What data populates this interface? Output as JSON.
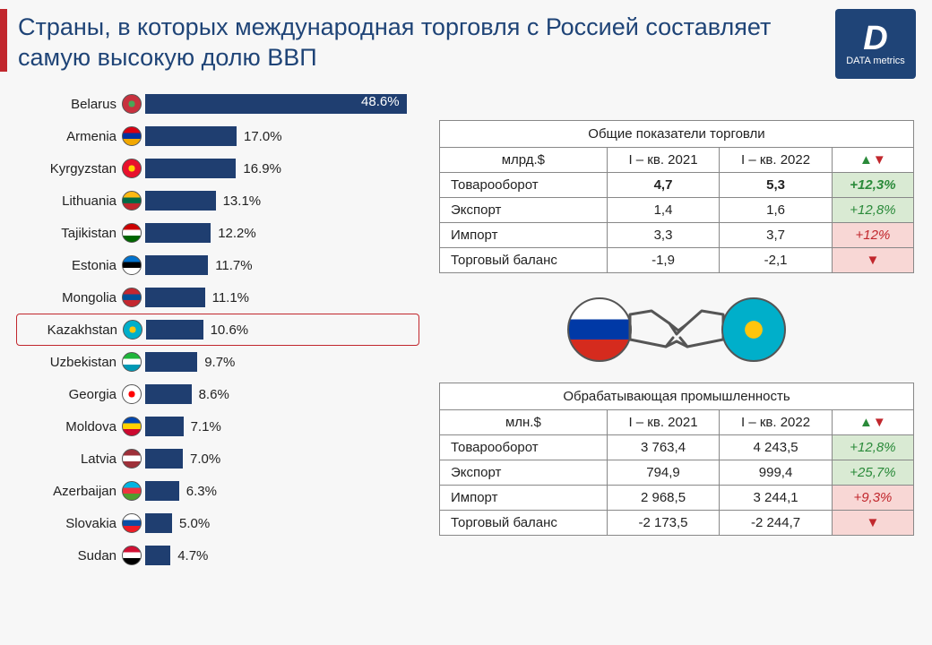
{
  "header": {
    "title": "Страны, в которых международная торговля с Россией составляет самую высокую долю ВВП",
    "logo_letter": "D",
    "logo_text": "DATA metrics",
    "accent_color": "#c1272d",
    "title_color": "#1f4477"
  },
  "chart": {
    "type": "bar_horizontal",
    "max_value": 50,
    "bar_color": "#1f3e70",
    "highlight_border": "#c1272d",
    "bars": [
      {
        "label": "Belarus",
        "value": 48.6,
        "value_text": "48.6%",
        "inside": true,
        "highlight": false,
        "flag_colors": [
          "#c8313e",
          "#4aa657"
        ]
      },
      {
        "label": "Armenia",
        "value": 17.0,
        "value_text": "17.0%",
        "inside": false,
        "highlight": false,
        "flag_colors": [
          "#d90012",
          "#0033a0",
          "#f2a800"
        ]
      },
      {
        "label": "Kyrgyzstan",
        "value": 16.9,
        "value_text": "16.9%",
        "inside": false,
        "highlight": false,
        "flag_colors": [
          "#e8112d",
          "#ffd200"
        ]
      },
      {
        "label": "Lithuania",
        "value": 13.1,
        "value_text": "13.1%",
        "inside": false,
        "highlight": false,
        "flag_colors": [
          "#fdb913",
          "#006a44",
          "#c1272d"
        ]
      },
      {
        "label": "Tajikistan",
        "value": 12.2,
        "value_text": "12.2%",
        "inside": false,
        "highlight": false,
        "flag_colors": [
          "#cc0000",
          "#ffffff",
          "#006600"
        ]
      },
      {
        "label": "Estonia",
        "value": 11.7,
        "value_text": "11.7%",
        "inside": false,
        "highlight": false,
        "flag_colors": [
          "#0072ce",
          "#000000",
          "#ffffff"
        ]
      },
      {
        "label": "Mongolia",
        "value": 11.1,
        "value_text": "11.1%",
        "inside": false,
        "highlight": false,
        "flag_colors": [
          "#c4272f",
          "#015197",
          "#c4272f"
        ]
      },
      {
        "label": "Kazakhstan",
        "value": 10.6,
        "value_text": "10.6%",
        "inside": false,
        "highlight": true,
        "flag_colors": [
          "#00afca",
          "#fec50c"
        ]
      },
      {
        "label": "Uzbekistan",
        "value": 9.7,
        "value_text": "9.7%",
        "inside": false,
        "highlight": false,
        "flag_colors": [
          "#1eb53a",
          "#ffffff",
          "#0099b5"
        ]
      },
      {
        "label": "Georgia",
        "value": 8.6,
        "value_text": "8.6%",
        "inside": false,
        "highlight": false,
        "flag_colors": [
          "#ffffff",
          "#ff0000"
        ]
      },
      {
        "label": "Moldova",
        "value": 7.1,
        "value_text": "7.1%",
        "inside": false,
        "highlight": false,
        "flag_colors": [
          "#0046ae",
          "#ffd200",
          "#cc092f"
        ]
      },
      {
        "label": "Latvia",
        "value": 7.0,
        "value_text": "7.0%",
        "inside": false,
        "highlight": false,
        "flag_colors": [
          "#9e3039",
          "#ffffff",
          "#9e3039"
        ]
      },
      {
        "label": "Azerbaijan",
        "value": 6.3,
        "value_text": "6.3%",
        "inside": false,
        "highlight": false,
        "flag_colors": [
          "#00b5e2",
          "#ef3340",
          "#509e2f"
        ]
      },
      {
        "label": "Slovakia",
        "value": 5.0,
        "value_text": "5.0%",
        "inside": false,
        "highlight": false,
        "flag_colors": [
          "#ffffff",
          "#0b4ea2",
          "#ee1c25"
        ]
      },
      {
        "label": "Sudan",
        "value": 4.7,
        "value_text": "4.7%",
        "inside": false,
        "highlight": false,
        "flag_colors": [
          "#d21034",
          "#ffffff",
          "#000000"
        ]
      }
    ]
  },
  "table1": {
    "caption": "Общие показатели торговли",
    "unit": "млрд.$",
    "col1": "I – кв. 2021",
    "col2": "I – кв. 2022",
    "col3_up": "▲",
    "col3_down": "▼",
    "rows": [
      {
        "name": "Товарооборот",
        "v1": "4,7",
        "v2": "5,3",
        "delta": "+12,3%",
        "dir": "up",
        "bold": true
      },
      {
        "name": "Экспорт",
        "v1": "1,4",
        "v2": "1,6",
        "delta": "+12,8%",
        "dir": "up",
        "bold": false
      },
      {
        "name": "Импорт",
        "v1": "3,3",
        "v2": "3,7",
        "delta": "+12%",
        "dir": "down",
        "bold": false
      },
      {
        "name": "Торговый баланс",
        "v1": "-1,9",
        "v2": "-2,1",
        "delta": "▼",
        "dir": "down",
        "bold": false
      }
    ]
  },
  "table2": {
    "caption": "Обрабатывающая промышленность",
    "unit": "млн.$",
    "col1": "I – кв. 2021",
    "col2": "I – кв. 2022",
    "col3_up": "▲",
    "col3_down": "▼",
    "rows": [
      {
        "name": "Товарооборот",
        "v1": "3 763,4",
        "v2": "4 243,5",
        "delta": "+12,8%",
        "dir": "up"
      },
      {
        "name": "Экспорт",
        "v1": "794,9",
        "v2": "999,4",
        "delta": "+25,7%",
        "dir": "up"
      },
      {
        "name": "Импорт",
        "v1": "2 968,5",
        "v2": "3 244,1",
        "delta": "+9,3%",
        "dir": "down"
      },
      {
        "name": "Торговый баланс",
        "v1": "-2 173,5",
        "v2": "-2 244,7",
        "delta": "▼",
        "dir": "down"
      }
    ]
  },
  "handshake": {
    "left_flag": {
      "stripes": [
        "#ffffff",
        "#0039a6",
        "#d52b1e"
      ]
    },
    "right_flag": {
      "base": "#00afca",
      "accent": "#fec50c"
    },
    "icon_color": "#555"
  }
}
